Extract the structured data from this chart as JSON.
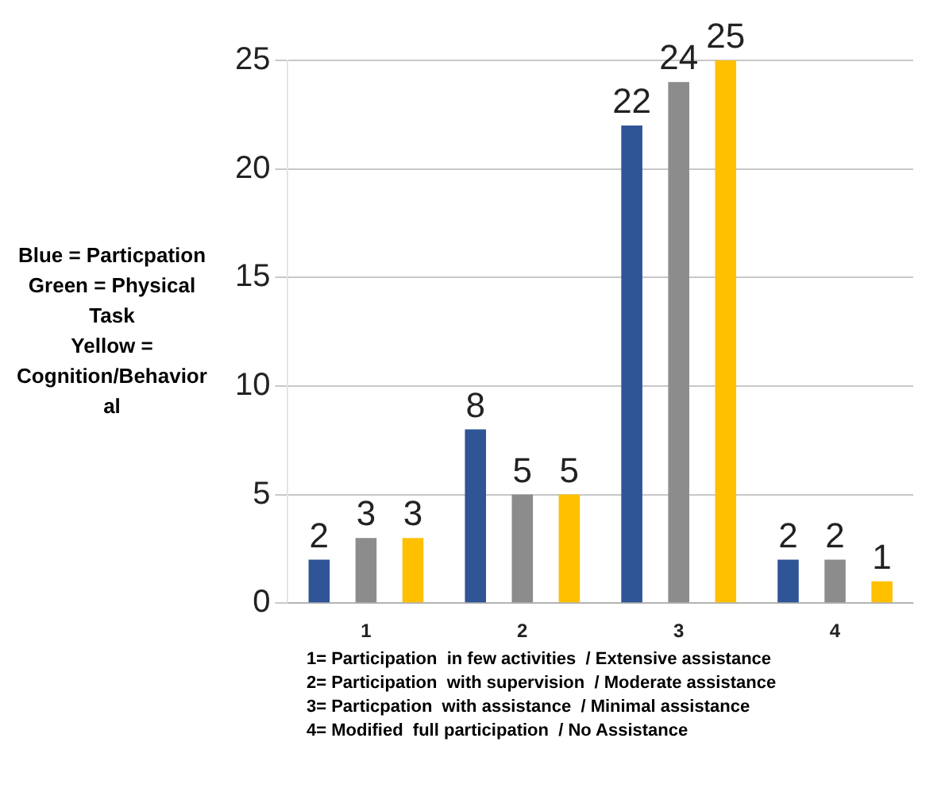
{
  "chart_data": {
    "type": "bar",
    "categories": [
      "1",
      "2",
      "3",
      "4"
    ],
    "series": [
      {
        "color": "#2f5597",
        "values": [
          2,
          8,
          22,
          2
        ]
      },
      {
        "color": "#8c8c8c",
        "values": [
          3,
          5,
          24,
          2
        ]
      },
      {
        "color": "#ffc000",
        "values": [
          3,
          5,
          25,
          1
        ]
      }
    ],
    "ylim": [
      0,
      25
    ],
    "yticks": [
      0,
      5,
      10,
      15,
      20,
      25
    ],
    "grid": "y",
    "legend": false,
    "data_labels": true,
    "annotations": [
      "Blue = Particpation\nGreen = Physical Task\nYellow = Cognition/Behavioral",
      "1= Participation  in few activities  / Extensive assistance",
      "2= Participation  with supervision  / Moderate assistance",
      "3= Particpation  with assistance  / Minimal assistance",
      "4= Modified  full participation  / No Assistance"
    ]
  }
}
